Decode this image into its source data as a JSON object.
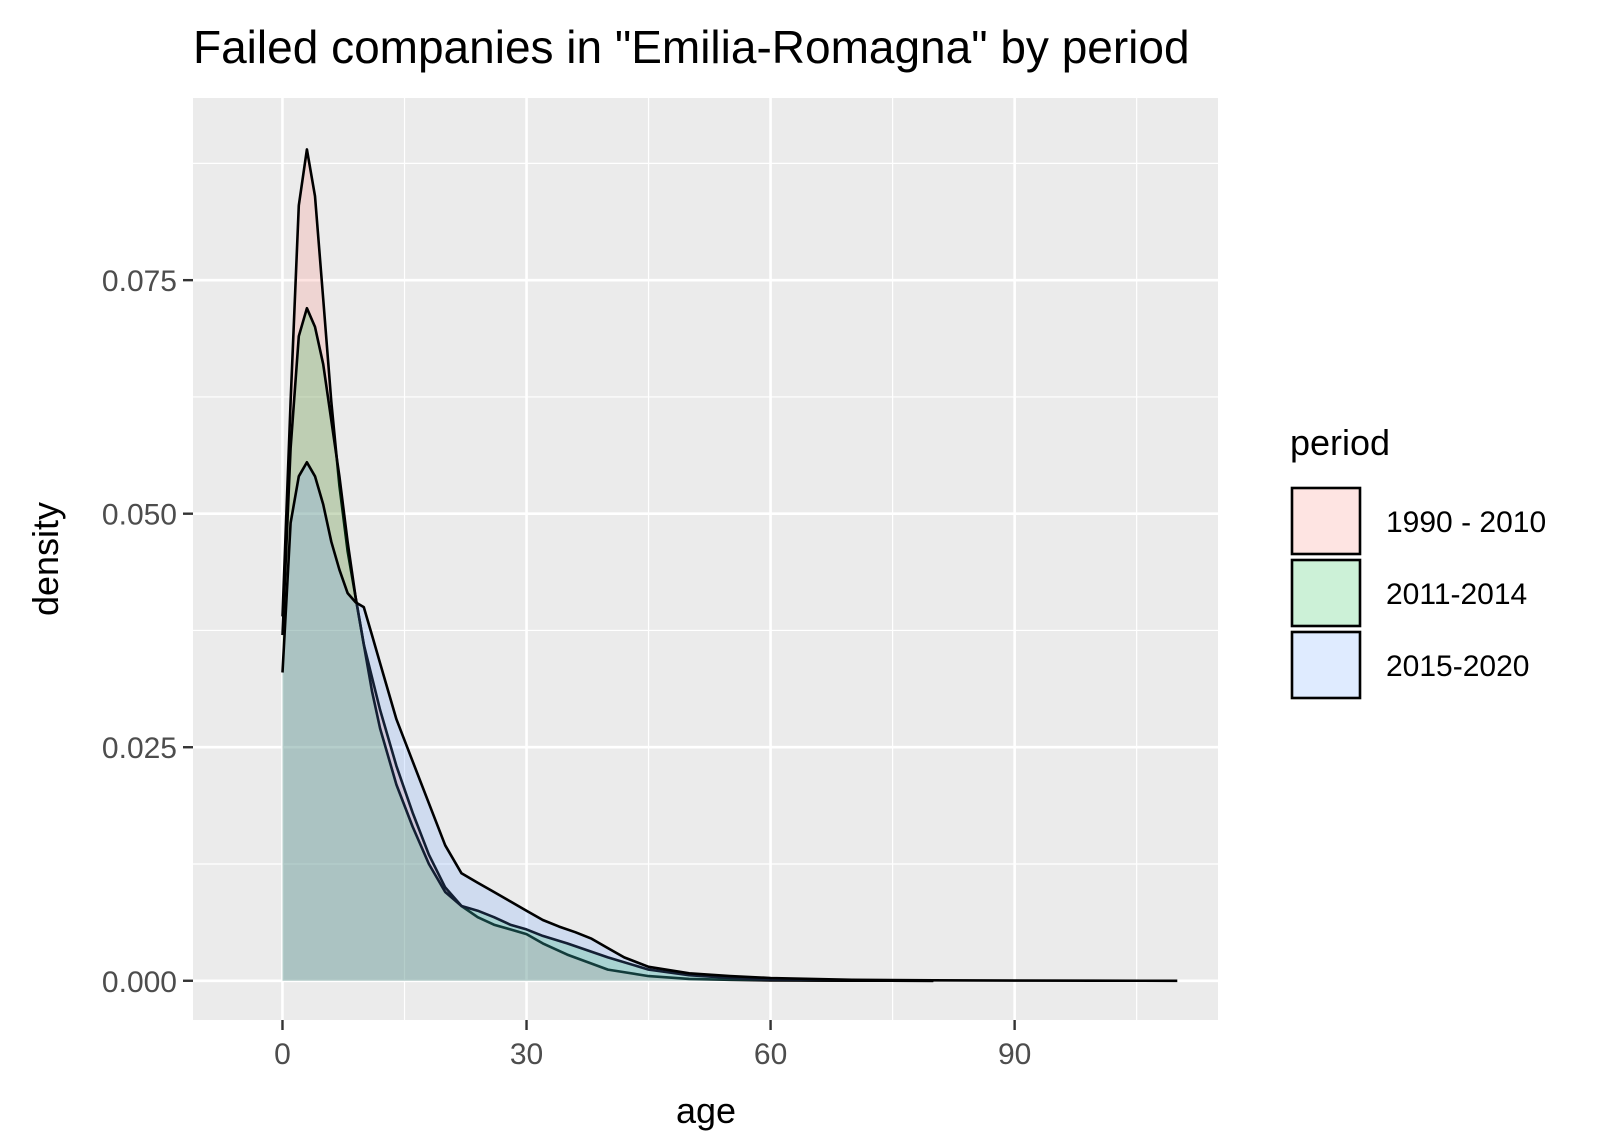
{
  "chart_data": {
    "type": "area",
    "title": "Failed companies in \"Emilia-Romagna\" by period",
    "xlabel": "age",
    "ylabel": "density",
    "xlim": [
      -11,
      115
    ],
    "ylim": [
      -0.0042,
      0.0945
    ],
    "x_ticks": [
      0,
      30,
      60,
      90
    ],
    "x_tick_labels": [
      "0",
      "30",
      "60",
      "90"
    ],
    "x_minor_ticks": [
      15,
      45,
      75,
      105
    ],
    "y_ticks": [
      0.0,
      0.025,
      0.05,
      0.075
    ],
    "y_tick_labels": [
      "0.000",
      "0.025",
      "0.050",
      "0.075"
    ],
    "y_minor_ticks": [
      0.0125,
      0.0375,
      0.0625,
      0.0875
    ],
    "grid": true,
    "legend": {
      "title": "period",
      "position": "right"
    },
    "series": [
      {
        "name": "1990 - 2010",
        "fill": "#F8766D",
        "x": [
          0,
          1,
          2,
          3,
          4,
          5,
          6,
          7,
          8,
          9,
          10,
          12,
          14,
          16,
          18,
          20,
          22,
          24,
          26,
          28,
          30,
          32,
          35,
          40,
          45,
          50,
          55,
          60,
          70,
          80
        ],
        "y": [
          0.039,
          0.062,
          0.083,
          0.089,
          0.084,
          0.073,
          0.062,
          0.053,
          0.046,
          0.041,
          0.036,
          0.029,
          0.023,
          0.018,
          0.0135,
          0.01,
          0.008,
          0.0068,
          0.006,
          0.0055,
          0.005,
          0.004,
          0.0028,
          0.0012,
          0.0005,
          0.0002,
          0.0001,
          4e-05,
          1e-05,
          0.0
        ]
      },
      {
        "name": "2011-2014",
        "fill": "#00BA38",
        "x": [
          0,
          1,
          2,
          3,
          4,
          5,
          6,
          7,
          8,
          9,
          10,
          11,
          12,
          14,
          16,
          18,
          20,
          22,
          24,
          26,
          28,
          30,
          32,
          35,
          40,
          45,
          50,
          55,
          60,
          65,
          70,
          80
        ],
        "y": [
          0.037,
          0.057,
          0.069,
          0.072,
          0.07,
          0.066,
          0.06,
          0.054,
          0.047,
          0.041,
          0.036,
          0.031,
          0.027,
          0.021,
          0.0165,
          0.0125,
          0.0095,
          0.008,
          0.0075,
          0.0068,
          0.006,
          0.0055,
          0.0048,
          0.004,
          0.0025,
          0.0012,
          0.0006,
          0.0003,
          0.0001,
          5e-05,
          2e-05,
          0.0
        ]
      },
      {
        "name": "2015-2020",
        "fill": "#619CFF",
        "x": [
          0,
          1,
          2,
          3,
          4,
          5,
          6,
          7,
          8,
          9,
          10,
          11,
          12,
          14,
          16,
          18,
          20,
          22,
          24,
          26,
          28,
          30,
          32,
          34,
          36,
          38,
          40,
          42,
          45,
          50,
          55,
          60,
          65,
          70,
          80,
          90,
          100,
          110
        ],
        "y": [
          0.033,
          0.049,
          0.054,
          0.0555,
          0.054,
          0.051,
          0.047,
          0.044,
          0.0415,
          0.0405,
          0.04,
          0.037,
          0.034,
          0.028,
          0.0235,
          0.019,
          0.0145,
          0.0115,
          0.0105,
          0.0095,
          0.0085,
          0.0075,
          0.0065,
          0.0058,
          0.0052,
          0.0045,
          0.0035,
          0.0025,
          0.0015,
          0.0008,
          0.0005,
          0.0003,
          0.0002,
          0.0001,
          5e-05,
          2e-05,
          1e-05,
          0.0
        ]
      }
    ]
  }
}
